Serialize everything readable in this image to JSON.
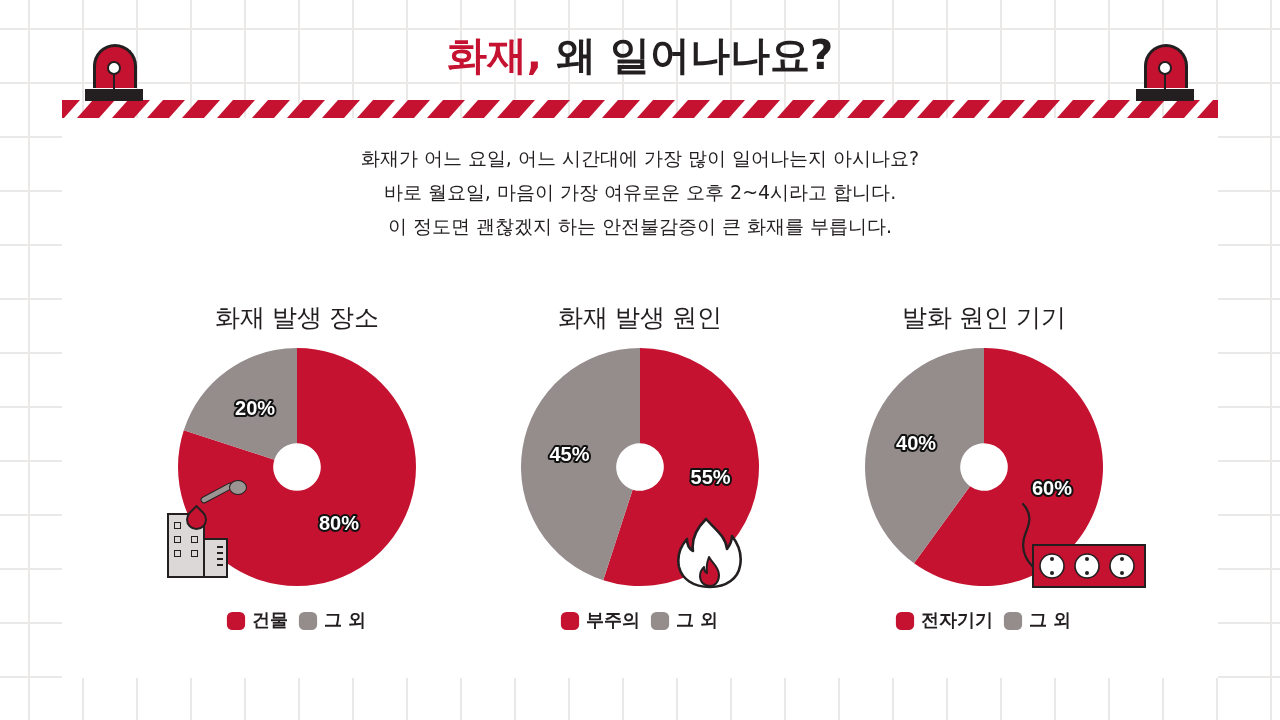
{
  "chart_data": [
    {
      "type": "other",
      "title": "화재, 왜 일어나나요?",
      "subtitle": "화재가 어느 요일, 어느 시간대에 가장 많이 일어나는지 아시나요?\n바로 월요일, 마음이 가장 여유로운 오후 2~4시라고 합니다.\n이 정도면 괜찮겠지 하는 안전불감증이 큰 화재를 부릅니다."
    },
    {
      "type": "donut",
      "title": "화재 발생 장소",
      "categories": [
        "건물",
        "그 외"
      ],
      "values": [
        80,
        20
      ],
      "colors": [
        "#c41230",
        "#958c8c"
      ],
      "value_labels": [
        "80%",
        "20%"
      ],
      "legend": "bottom"
    },
    {
      "type": "donut",
      "title": "화재 발생 원인",
      "categories": [
        "부주의",
        "그 외"
      ],
      "values": [
        55,
        45
      ],
      "colors": [
        "#c41230",
        "#958c8c"
      ],
      "value_labels": [
        "55%",
        "45%"
      ],
      "legend": "bottom"
    },
    {
      "type": "donut",
      "title": "발화 원인 기기",
      "categories": [
        "전자기기",
        "그 외"
      ],
      "values": [
        60,
        40
      ],
      "colors": [
        "#c41230",
        "#958c8c"
      ],
      "value_labels": [
        "60%",
        "40%"
      ],
      "legend": "bottom"
    }
  ]
}
